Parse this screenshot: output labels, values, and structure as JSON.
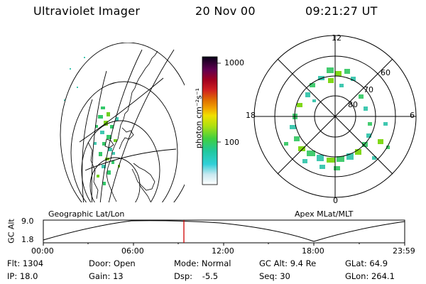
{
  "header": {
    "instrument": "Ultraviolet Imager",
    "date": "20 Nov 00",
    "time": "09:21:27 UT"
  },
  "colorbar": {
    "unit_label": "photon cm⁻²s⁻¹",
    "ticks": [
      "1000",
      "100"
    ]
  },
  "geo_panel": {
    "caption": "Geographic Lat/Lon"
  },
  "polar_panel": {
    "caption": "Apex MLat/MLT",
    "mlt_labels": {
      "top": "12",
      "bottom": "0",
      "left": "18",
      "right": "6"
    },
    "lat_labels": [
      "60",
      "70",
      "80"
    ]
  },
  "orbit_plot": {
    "ylabel": "GC Alt",
    "y_ticks": [
      "9.0",
      "1.8"
    ],
    "x_ticks": [
      "00:00",
      "06:00",
      "12:00",
      "18:00",
      "23:59"
    ],
    "current_time_fraction": 0.39,
    "colors": {
      "marker": "#d00000",
      "curve": "#000000"
    }
  },
  "info": {
    "row1": [
      {
        "key": "Flt:",
        "value": "1304"
      },
      {
        "key": "Door:",
        "value": "Open"
      },
      {
        "key": "Mode:",
        "value": "Normal"
      },
      {
        "key": "GC Alt:",
        "value": "9.4 Re"
      },
      {
        "key": "GLat:",
        "value": "64.9"
      }
    ],
    "row2": [
      {
        "key": "IP:",
        "value": "18.0"
      },
      {
        "key": "Gain:",
        "value": "13"
      },
      {
        "key": "Dsp:",
        "value": "-5.5"
      },
      {
        "key": "Seq:",
        "value": "30"
      },
      {
        "key": "GLon:",
        "value": "264.1"
      }
    ]
  }
}
